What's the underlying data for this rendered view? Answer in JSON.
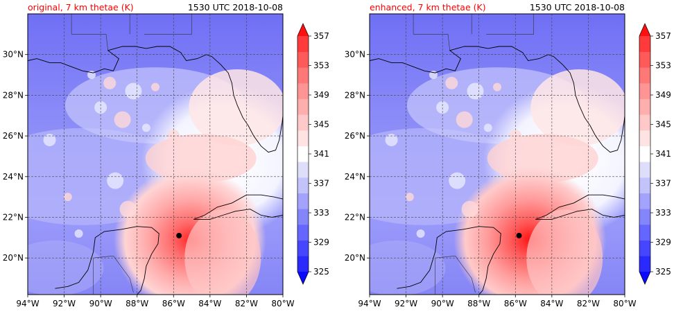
{
  "panels": [
    {
      "title_left": "original, 7 km thetae (K)",
      "title_right": "1530 UTC 2018-10-08",
      "storm_center": {
        "lon": -85.7,
        "lat": 21.1
      }
    },
    {
      "title_left": "enhanced, 7 km thetae (K)",
      "title_right": "1530 UTC 2018-10-08",
      "storm_center": {
        "lon": -85.8,
        "lat": 21.1
      }
    }
  ],
  "axes": {
    "lon_range": [
      -94,
      -80
    ],
    "lat_range": [
      18.2,
      32.0
    ],
    "x_ticks": [
      "94°W",
      "92°W",
      "90°W",
      "88°W",
      "86°W",
      "84°W",
      "82°W",
      "80°W"
    ],
    "y_ticks": [
      "20°N",
      "22°N",
      "24°N",
      "26°N",
      "28°N",
      "30°N"
    ],
    "grid": "dashed"
  },
  "colorbar": {
    "labels": [
      "325",
      "329",
      "333",
      "337",
      "341",
      "345",
      "349",
      "353",
      "357"
    ],
    "range": [
      325,
      357
    ],
    "colors": [
      "#0a0aff",
      "#2a2aff",
      "#4646ff",
      "#6565ff",
      "#8585fb",
      "#a3a3fd",
      "#c3c3fc",
      "#dedefa",
      "#ffffff",
      "#ffe2e2",
      "#ffc9c9",
      "#ffaeae",
      "#ff9494",
      "#ff7878",
      "#ff5a5a",
      "#ff3a3a",
      "#ff1010"
    ],
    "extend": "both"
  },
  "colors": {
    "title_left": "#ff0000",
    "title_right": "#000000"
  }
}
